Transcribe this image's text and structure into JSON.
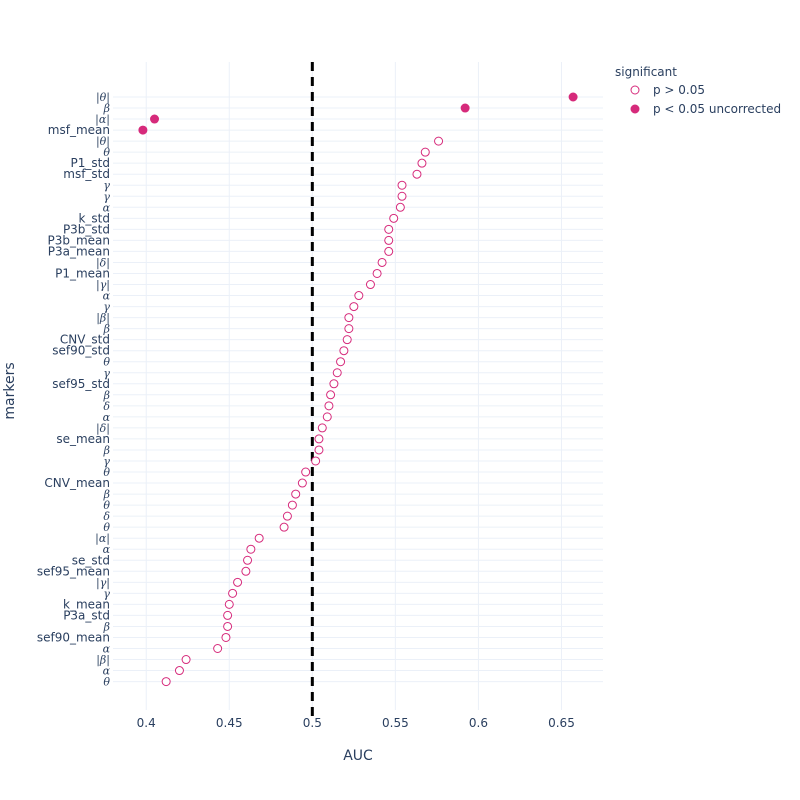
{
  "chart_data": {
    "type": "scatter",
    "xlabel": "AUC",
    "ylabel": "markers",
    "xlim": [
      0.38,
      0.675
    ],
    "x_ticks": [
      0.4,
      0.45,
      0.5,
      0.55,
      0.6,
      0.65
    ],
    "x_tick_labels": [
      "0.4",
      "0.45",
      "0.5",
      "0.55",
      "0.6",
      "0.65"
    ],
    "grid": true,
    "reference_line": {
      "x": 0.5,
      "style": "dashed",
      "color": "#000000"
    },
    "legend": {
      "title": "significant",
      "placement": "top-right",
      "entries": [
        {
          "label": "p > 0.05",
          "marker": "open-circle"
        },
        {
          "label": "p < 0.05 uncorrected",
          "marker": "filled-circle"
        }
      ]
    },
    "marker_color": "#d62a7b",
    "categories": [
      "|θ|",
      "β",
      "|α|",
      "msf_mean",
      "|θ|",
      "θ",
      "P1_std",
      "msf_std",
      "γ",
      "γ",
      "α",
      "k_std",
      "P3b_std",
      "P3b_mean",
      "P3a_mean",
      "|δ|",
      "P1_mean",
      "|γ|",
      "α",
      "γ",
      "|β|",
      "β",
      "CNV_std",
      "sef90_std",
      "θ",
      "γ",
      "sef95_std",
      "β",
      "δ",
      "α",
      "|δ|",
      "se_mean",
      "β",
      "γ",
      "θ",
      "CNV_mean",
      "β",
      "θ",
      "δ",
      "θ",
      "|α|",
      "α",
      "se_std",
      "sef95_mean",
      "|γ|",
      "γ",
      "k_mean",
      "P3a_std",
      "β",
      "sef90_mean",
      "α",
      "|β|",
      "α",
      "θ"
    ],
    "values": [
      0.657,
      0.592,
      0.405,
      0.398,
      0.576,
      0.568,
      0.566,
      0.563,
      0.554,
      0.554,
      0.553,
      0.549,
      0.546,
      0.546,
      0.546,
      0.542,
      0.539,
      0.535,
      0.528,
      0.525,
      0.522,
      0.522,
      0.521,
      0.519,
      0.517,
      0.515,
      0.513,
      0.511,
      0.51,
      0.509,
      0.506,
      0.504,
      0.504,
      0.502,
      0.496,
      0.494,
      0.49,
      0.488,
      0.485,
      0.483,
      0.468,
      0.463,
      0.461,
      0.46,
      0.455,
      0.452,
      0.45,
      0.449,
      0.449,
      0.448,
      0.443,
      0.424,
      0.42,
      0.412
    ],
    "significant": [
      true,
      true,
      true,
      true,
      false,
      false,
      false,
      false,
      false,
      false,
      false,
      false,
      false,
      false,
      false,
      false,
      false,
      false,
      false,
      false,
      false,
      false,
      false,
      false,
      false,
      false,
      false,
      false,
      false,
      false,
      false,
      false,
      false,
      false,
      false,
      false,
      false,
      false,
      false,
      false,
      false,
      false,
      false,
      false,
      false,
      false,
      false,
      false,
      false,
      false,
      false,
      false,
      false,
      false
    ]
  }
}
